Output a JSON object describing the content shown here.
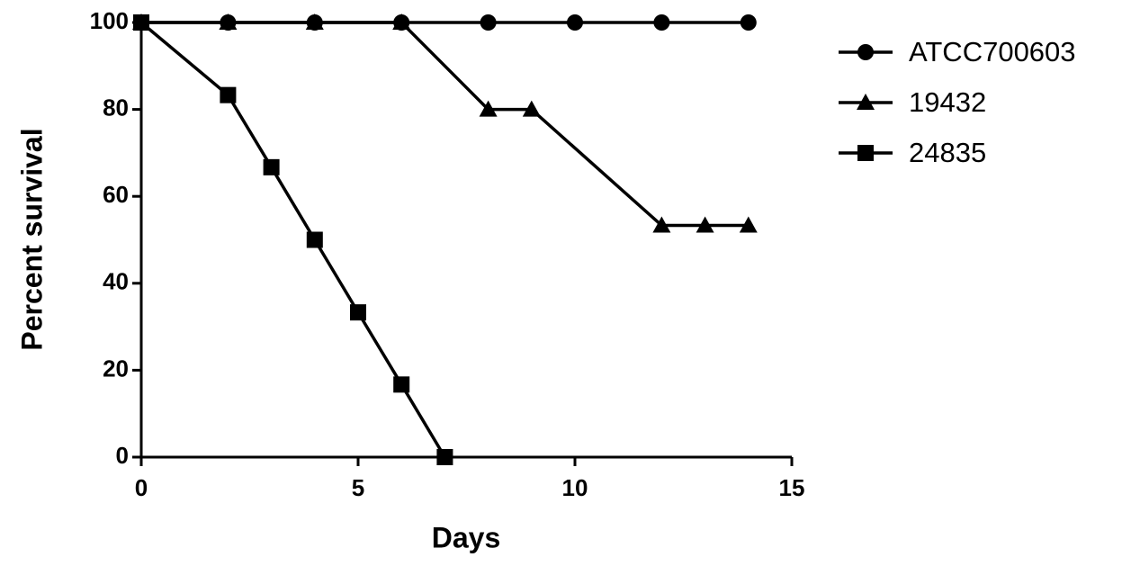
{
  "chart_data": {
    "type": "line",
    "xlabel": "Days",
    "ylabel": "Percent survival",
    "xlim": [
      0,
      15
    ],
    "xticks": [
      0,
      5,
      10,
      15
    ],
    "ylim": [
      0,
      100
    ],
    "yticks": [
      0,
      20,
      40,
      60,
      80,
      100
    ],
    "grid": false,
    "legend": "right",
    "series": [
      {
        "name": "ATCC700603",
        "color": "#000000",
        "marker": "circle",
        "x": [
          0,
          2,
          4,
          6,
          8,
          10,
          12,
          14
        ],
        "values": [
          100,
          100,
          100,
          100,
          100,
          100,
          100,
          100
        ]
      },
      {
        "name": "19432",
        "color": "#000000",
        "marker": "triangle",
        "x": [
          0,
          2,
          4,
          6,
          8,
          9,
          12,
          13,
          14
        ],
        "values": [
          100,
          100,
          100,
          100,
          80,
          80,
          53.3,
          53.3,
          53.3
        ]
      },
      {
        "name": "24835",
        "color": "#000000",
        "marker": "square",
        "x": [
          0,
          2,
          3,
          4,
          5,
          6,
          7
        ],
        "values": [
          100,
          83.3,
          66.7,
          50,
          33.3,
          16.7,
          0
        ]
      }
    ]
  }
}
